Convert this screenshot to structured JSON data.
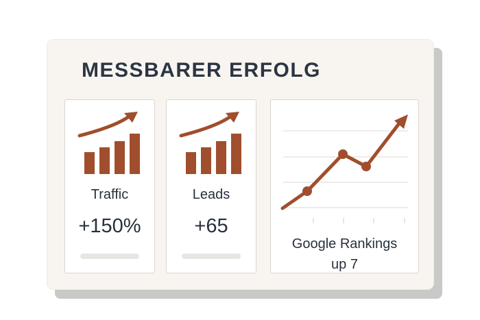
{
  "title": "MESSBARER ERFOLG",
  "accent_color": "#a04e2d",
  "metrics": [
    {
      "label": "Traffic",
      "value": "+150%",
      "icon": "growth-bar-chart-icon"
    },
    {
      "label": "Leads",
      "value": "+65",
      "icon": "growth-bar-chart-icon"
    }
  ],
  "rankings": {
    "label_line1": "Google Rankings",
    "label_line2": "up 7",
    "chart_type": "line",
    "trend": "upward"
  }
}
